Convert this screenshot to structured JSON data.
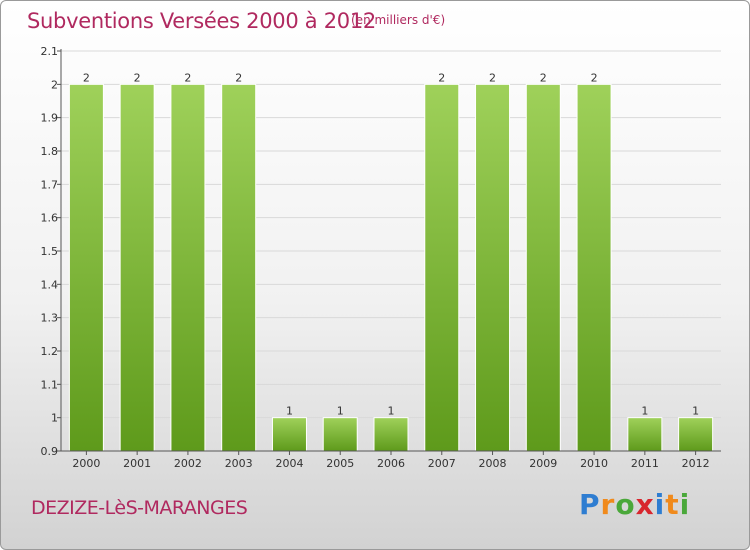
{
  "header": {
    "title": "Subventions Versées 2000 à 2012",
    "unit": "(en milliers d'€)"
  },
  "footer": {
    "commune": "DEZIZE-LèS-MARANGES",
    "logo": {
      "letters": [
        "P",
        "r",
        "o",
        "x",
        "i",
        "t",
        "i"
      ],
      "colors": [
        "#2e7dd1",
        "#f08a1c",
        "#4aa83a",
        "#d8262e",
        "#2e7dd1",
        "#f08a1c",
        "#4aa83a"
      ]
    }
  },
  "colors": {
    "bar_top": "#9fd15a",
    "bar_bottom": "#5e9a1b",
    "grid": "#d9d9d9",
    "axis": "#555555"
  },
  "chart_data": {
    "type": "bar",
    "categories": [
      "2000",
      "2001",
      "2002",
      "2003",
      "2004",
      "2005",
      "2006",
      "2007",
      "2008",
      "2009",
      "2010",
      "2011",
      "2012"
    ],
    "values": [
      2,
      2,
      2,
      2,
      1,
      1,
      1,
      2,
      2,
      2,
      2,
      1,
      1
    ],
    "data_labels": [
      "2",
      "2",
      "2",
      "2",
      "1",
      "1",
      "1",
      "2",
      "2",
      "2",
      "2",
      "1",
      "1"
    ],
    "yticks": [
      "0.9",
      "1",
      "1.1",
      "1.2",
      "1.3",
      "1.4",
      "1.5",
      "1.6",
      "1.7",
      "1.8",
      "1.9",
      "2",
      "2.1"
    ],
    "ylim": [
      0.9,
      2.1
    ],
    "grid": true,
    "legend": "none"
  }
}
